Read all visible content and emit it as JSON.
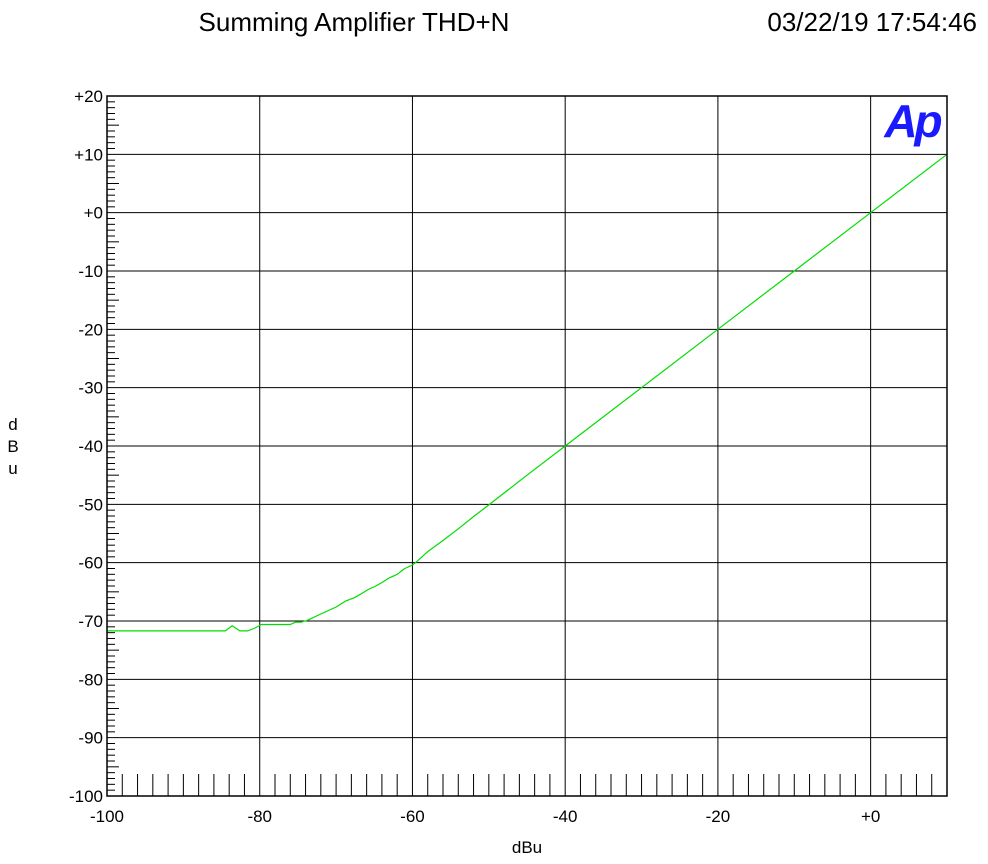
{
  "chart_data": {
    "type": "line",
    "title": "Summing Amplifier THD+N",
    "timestamp": "03/22/19 17:54:46",
    "xlabel": "dBu",
    "ylabel": "dBu",
    "xlim": [
      -100,
      10
    ],
    "ylim": [
      -100,
      20
    ],
    "grid": true,
    "logo_text": "Ap",
    "x_ticks": [
      {
        "value": -100,
        "label": "-100"
      },
      {
        "value": -80,
        "label": "-80"
      },
      {
        "value": -60,
        "label": "-60"
      },
      {
        "value": -40,
        "label": "-40"
      },
      {
        "value": -20,
        "label": "-20"
      },
      {
        "value": 0,
        "label": "+0"
      }
    ],
    "y_ticks": [
      {
        "value": 20,
        "label": "+20"
      },
      {
        "value": 10,
        "label": "+10"
      },
      {
        "value": 0,
        "label": "+0"
      },
      {
        "value": -10,
        "label": "-10"
      },
      {
        "value": -20,
        "label": "-20"
      },
      {
        "value": -30,
        "label": "-30"
      },
      {
        "value": -40,
        "label": "-40"
      },
      {
        "value": -50,
        "label": "-50"
      },
      {
        "value": -60,
        "label": "-60"
      },
      {
        "value": -70,
        "label": "-70"
      },
      {
        "value": -80,
        "label": "-80"
      },
      {
        "value": -90,
        "label": "-90"
      },
      {
        "value": -100,
        "label": "-100"
      }
    ],
    "series": [
      {
        "color": "#00dd00",
        "x": [
          -100,
          -84.5,
          -83.6,
          -82.6,
          -81.6,
          -80.6,
          -79.8,
          -78,
          -76,
          -75.3,
          -74.6,
          -73.8,
          -72,
          -70,
          -68.8,
          -67.6,
          -66.8,
          -65.8,
          -64.8,
          -64,
          -63,
          -62,
          -61,
          -60,
          -59.6,
          -59,
          -58,
          -56,
          -54,
          -52,
          -50,
          -45,
          -40,
          -30,
          -20,
          -10,
          0,
          10
        ],
        "y": [
          -71.7,
          -71.7,
          -70.8,
          -71.7,
          -71.7,
          -71.2,
          -70.6,
          -70.6,
          -70.6,
          -70.2,
          -70.2,
          -69.9,
          -68.8,
          -67.6,
          -66.6,
          -66,
          -65.4,
          -64.6,
          -64,
          -63.4,
          -62.6,
          -62,
          -61,
          -60.4,
          -60.0,
          -59.3,
          -58.1,
          -56.2,
          -54.2,
          -52.1,
          -50.1,
          -45,
          -40,
          -30,
          -20,
          -10,
          0,
          10
        ]
      }
    ]
  }
}
